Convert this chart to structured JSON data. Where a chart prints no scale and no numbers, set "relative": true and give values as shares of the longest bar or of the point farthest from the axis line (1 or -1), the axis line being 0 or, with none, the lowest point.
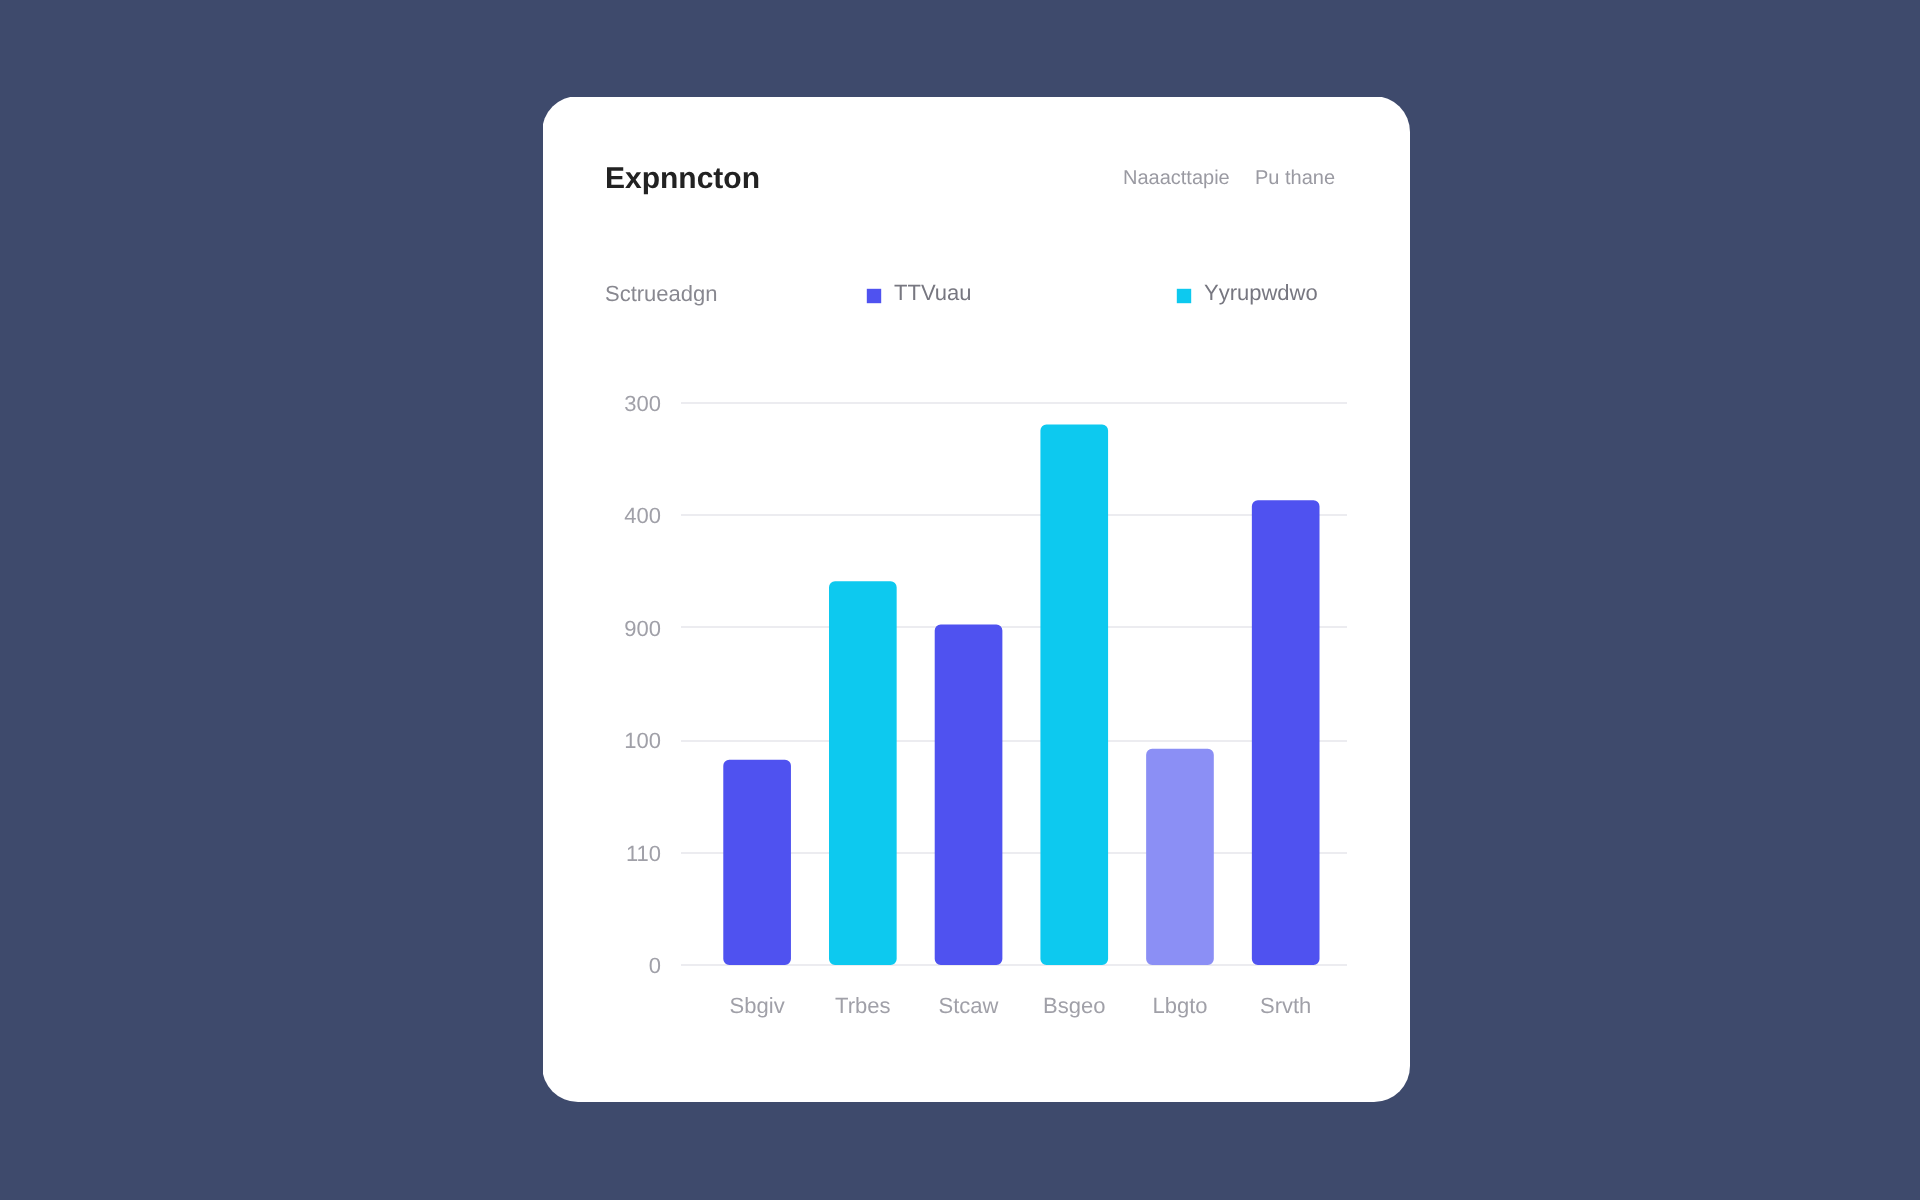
{
  "chart_data": {
    "type": "bar",
    "title": "Expnncton",
    "legend_title": "Sctrueadgn",
    "relative": true,
    "categories": [
      "Sbgiv",
      "Trbes",
      "Stcaw",
      "Bsgeo",
      "Lbgto",
      "Srvth"
    ],
    "series": [
      {
        "name": "TTVuau",
        "color": "#4f52f0",
        "values": [
          0.38,
          null,
          0.63,
          null,
          0.4,
          0.86
        ],
        "colors": [
          null,
          null,
          null,
          null,
          "#8b8ff5",
          null
        ]
      },
      {
        "name": "Yyrupwdwo",
        "color": "#0dc9ef",
        "values": [
          null,
          0.71,
          null,
          1,
          null,
          null
        ]
      }
    ],
    "grid": "y",
    "legend": "top",
    "annotations": [
      "Naaacttapie",
      "Pu thane",
      "300",
      "400",
      "900",
      "100",
      "110",
      "0"
    ]
  }
}
